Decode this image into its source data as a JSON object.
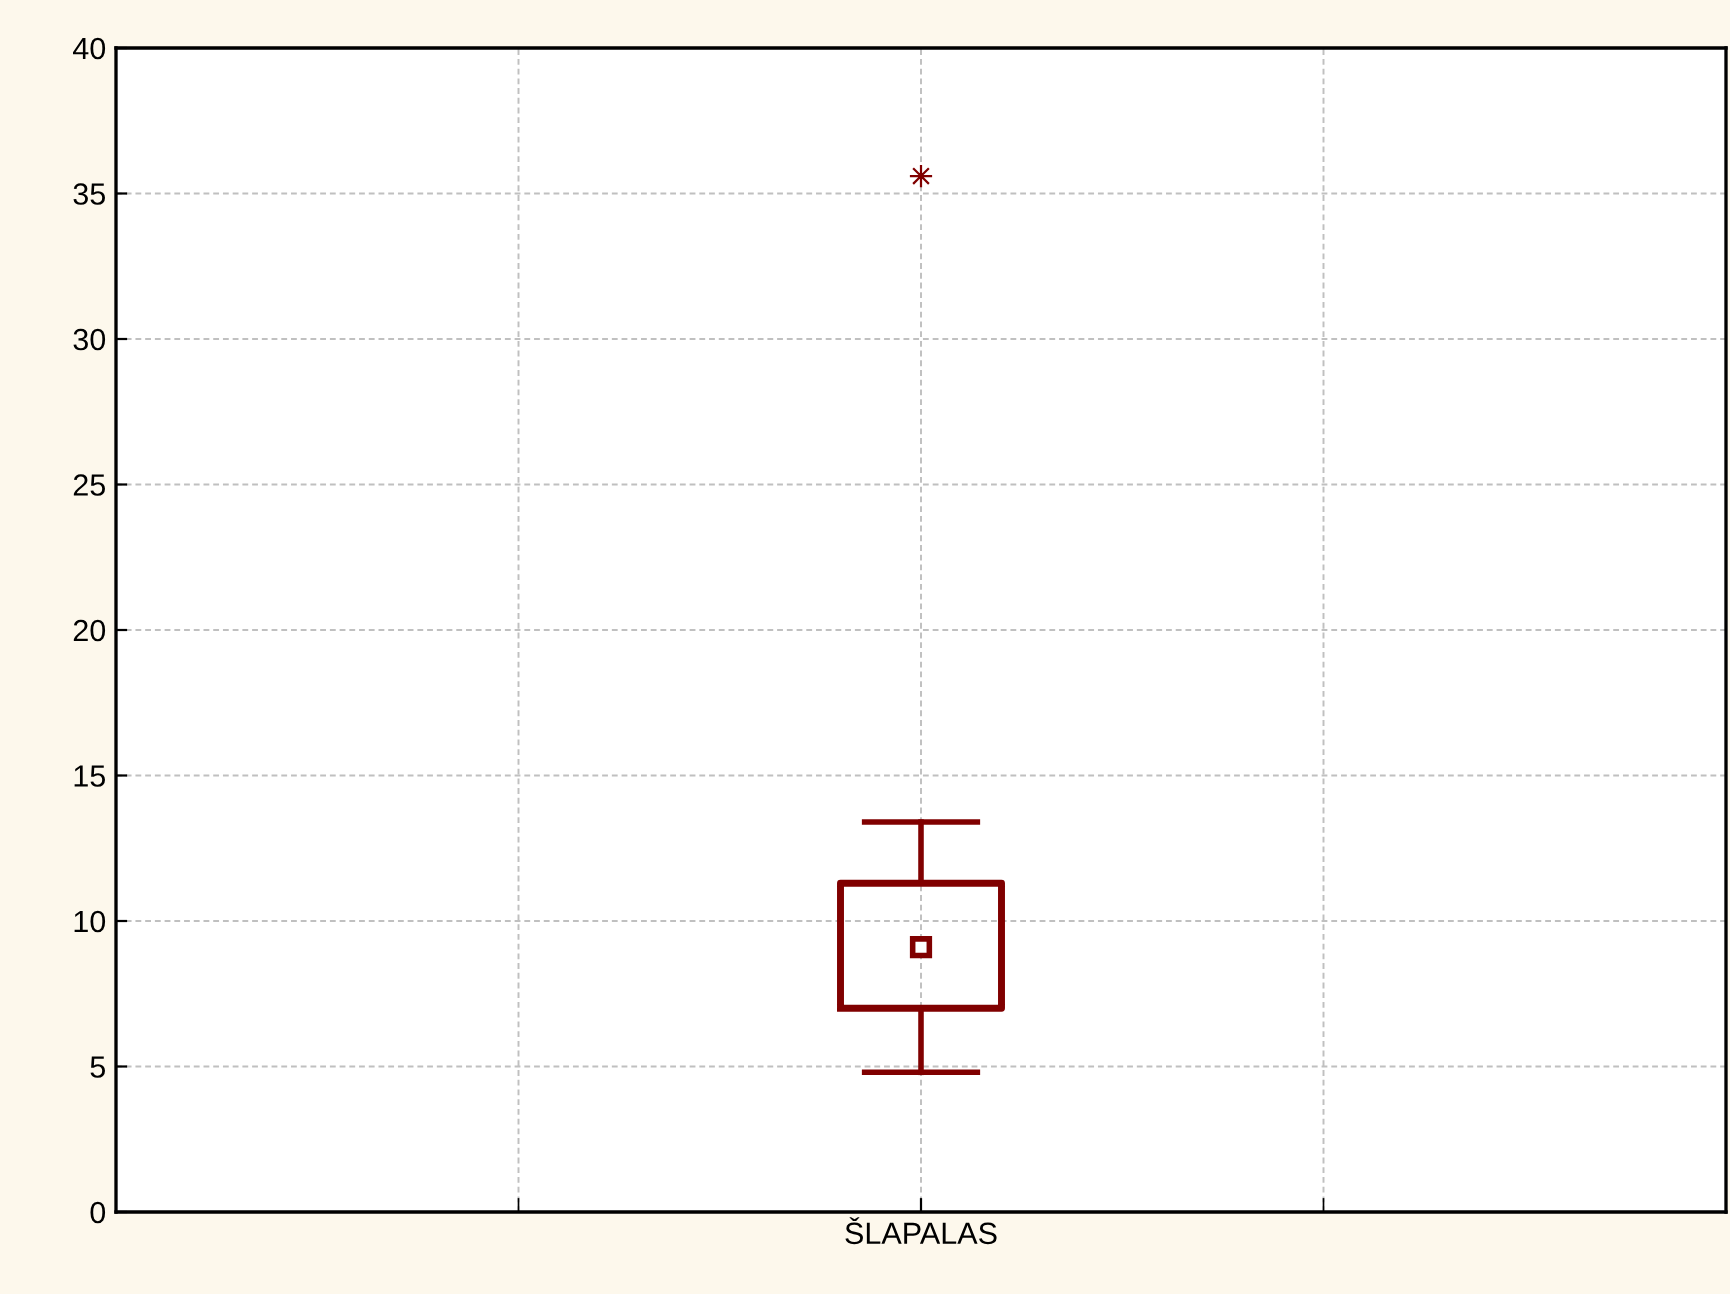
{
  "chart_data": {
    "type": "box",
    "categories": [
      "ŠLAPALAS"
    ],
    "boxes": [
      {
        "low": 4.8,
        "q1": 7.0,
        "median": 9.1,
        "q3": 11.3,
        "high": 13.4,
        "outliers": [
          35.6
        ]
      }
    ],
    "color": "#800000",
    "ylim": [
      0,
      40
    ],
    "yticks": [
      0,
      5,
      10,
      15,
      20,
      25,
      30,
      35,
      40
    ],
    "grid": true,
    "marker": "square"
  }
}
